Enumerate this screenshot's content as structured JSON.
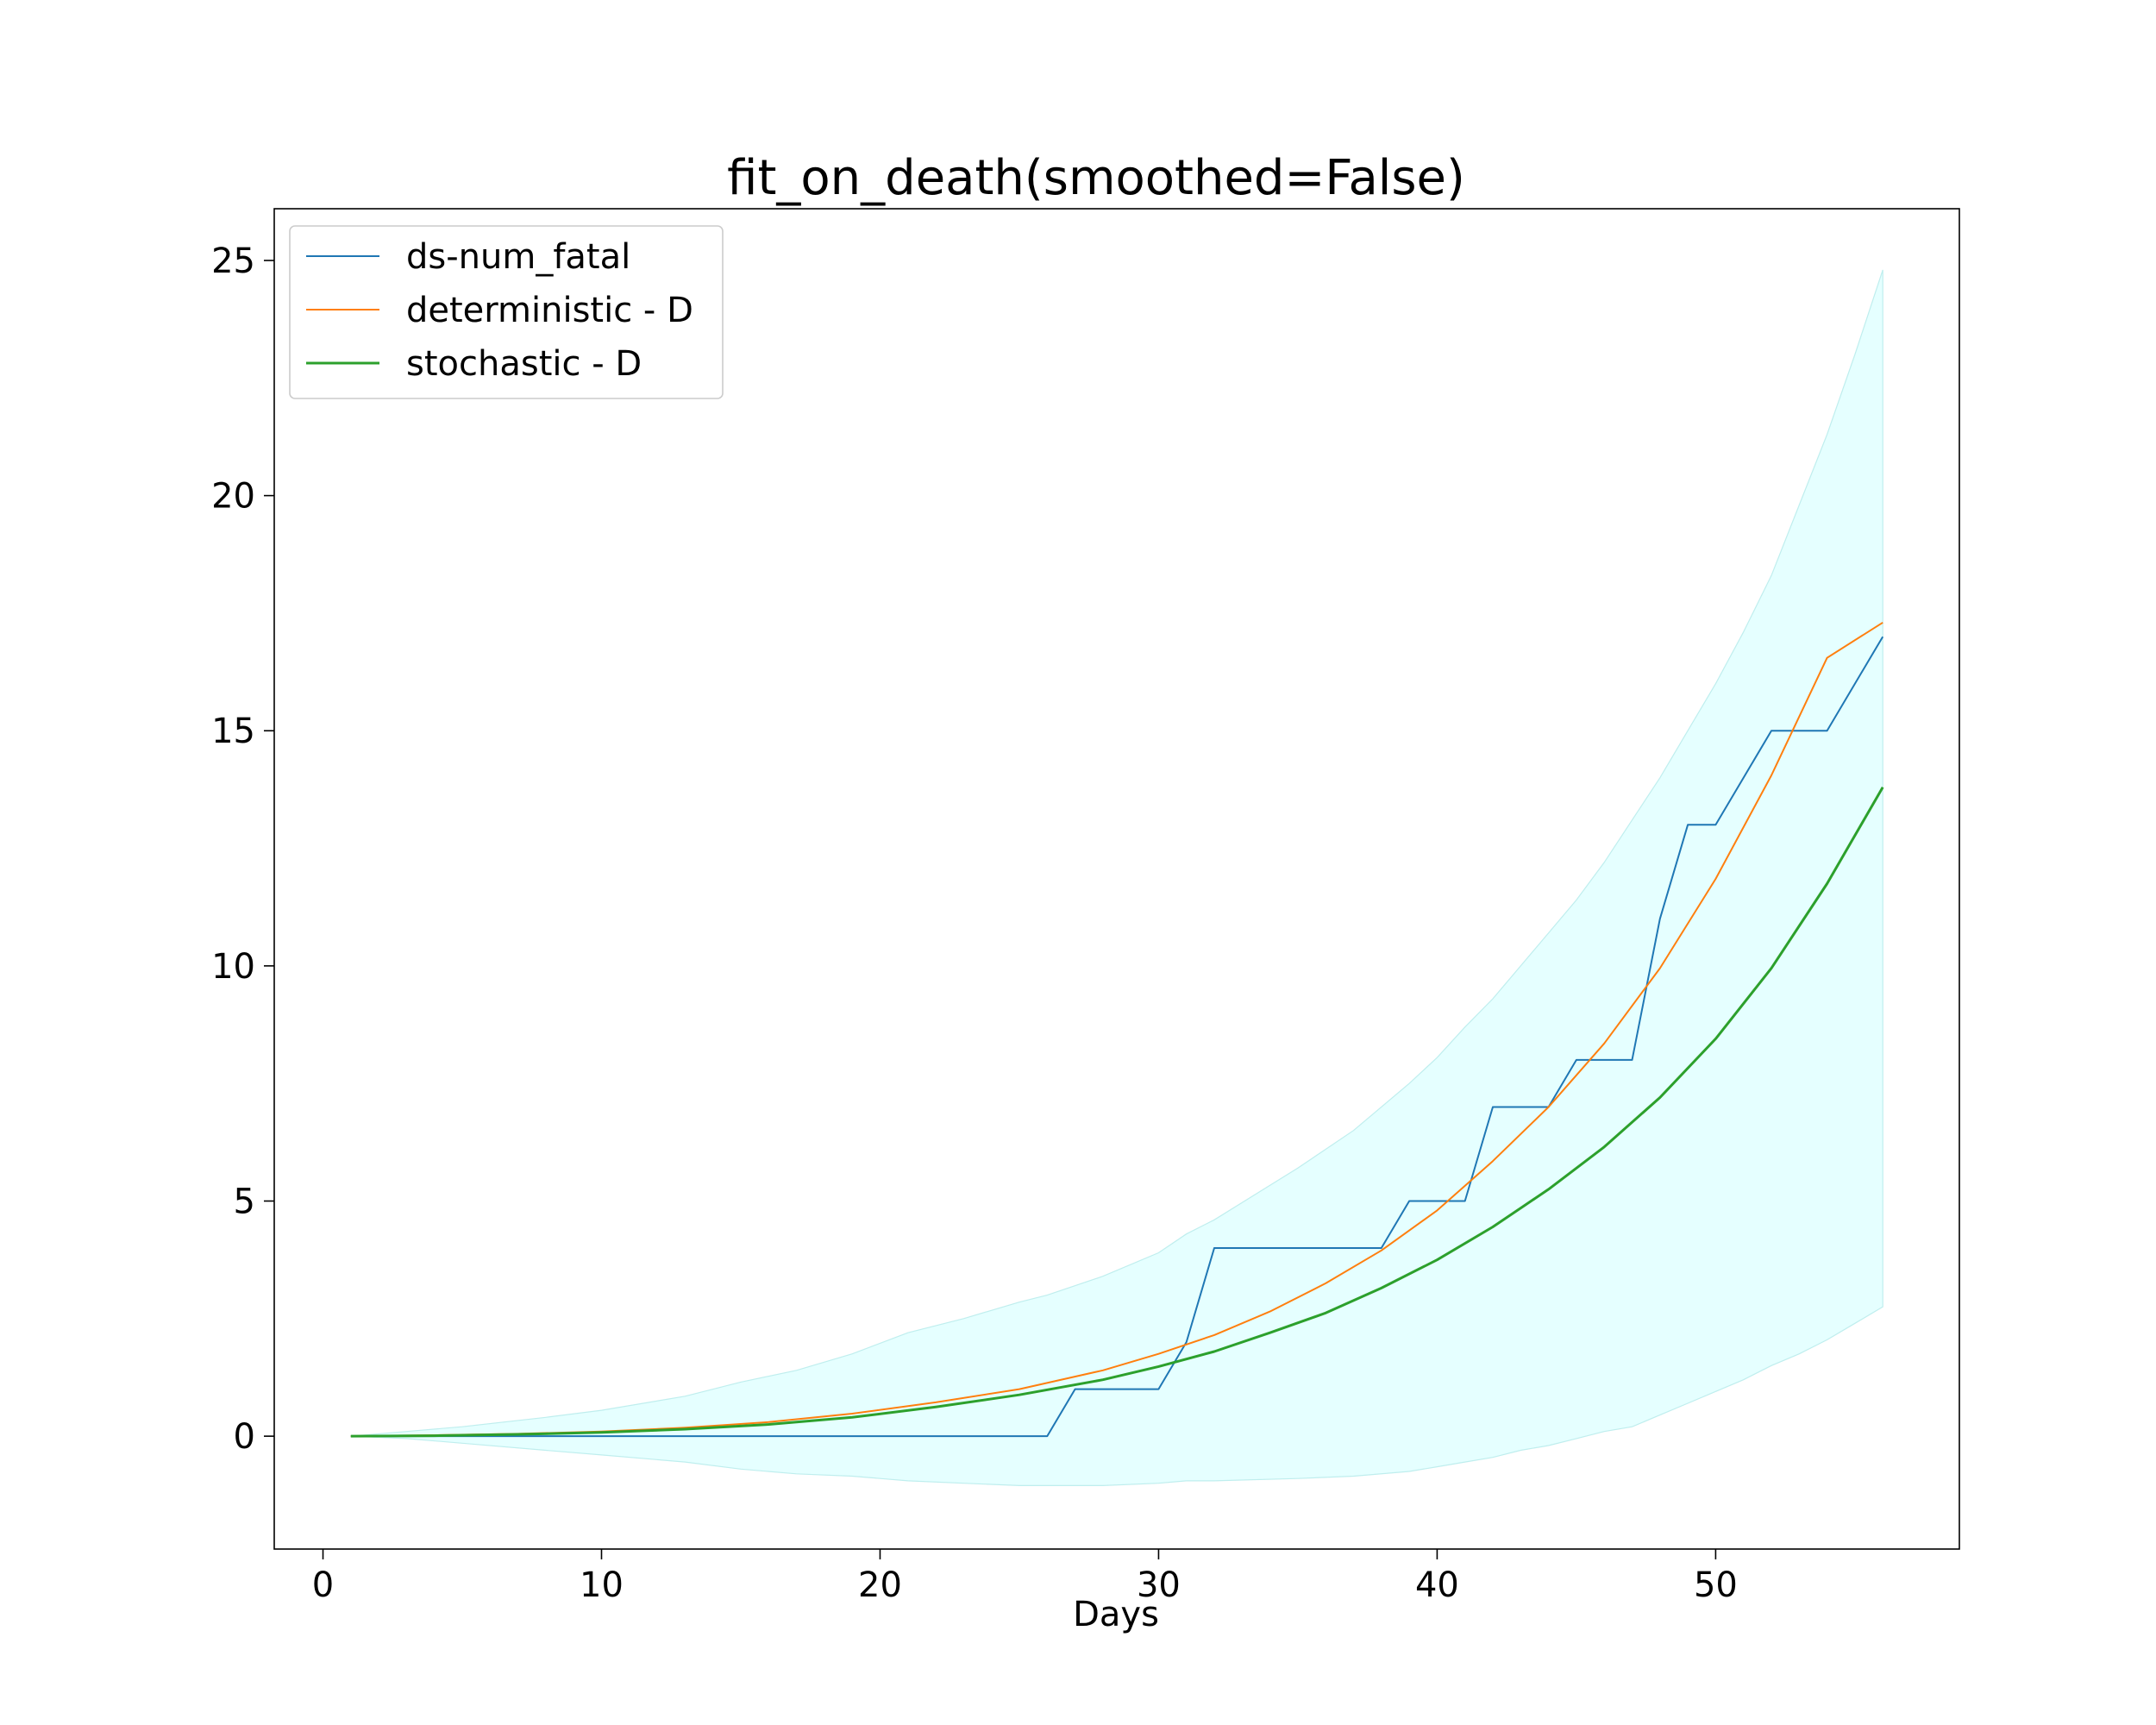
{
  "chart_data": {
    "type": "line",
    "title": "fit_on_death(smoothed=False)",
    "xlabel": "Days",
    "ylabel": "",
    "xlim": [
      -1.75,
      58.75
    ],
    "ylim": [
      -2.4,
      26.1
    ],
    "xticks": [
      0,
      10,
      20,
      30,
      40,
      50
    ],
    "yticks": [
      0,
      5,
      10,
      15,
      20,
      25
    ],
    "x_tick_labels": [
      "0",
      "10",
      "20",
      "30",
      "40",
      "50"
    ],
    "y_tick_labels": [
      "0",
      "5",
      "10",
      "15",
      "20",
      "25"
    ],
    "grid": false,
    "legend_position": "upper-left",
    "series": [
      {
        "name": "ds-num_fatal",
        "color": "#1f77b4",
        "x": [
          1,
          26,
          27,
          30,
          31,
          32,
          38,
          39,
          41,
          42,
          44,
          45,
          47,
          48,
          49,
          50,
          52,
          54,
          56
        ],
        "y": [
          0,
          0,
          1,
          1,
          2,
          4,
          4,
          5,
          5,
          7,
          7,
          8,
          8,
          11,
          13,
          13,
          15,
          15,
          17
        ]
      },
      {
        "name": "deterministic - D",
        "color": "#ff7f0e",
        "x": [
          1,
          4,
          7,
          10,
          13,
          16,
          19,
          22,
          25,
          28,
          30,
          32,
          34,
          36,
          38,
          40,
          42,
          44,
          46,
          48,
          50,
          52,
          54,
          56
        ],
        "y": [
          0,
          0.02,
          0.05,
          0.1,
          0.18,
          0.3,
          0.48,
          0.72,
          1.0,
          1.4,
          1.75,
          2.15,
          2.65,
          3.25,
          3.95,
          4.8,
          5.85,
          7.0,
          8.35,
          9.95,
          11.85,
          14.05,
          16.55,
          17.3
        ]
      },
      {
        "name": "stochastic - D",
        "color": "#2ca02c",
        "x": [
          1,
          4,
          7,
          10,
          13,
          16,
          19,
          22,
          25,
          28,
          30,
          32,
          34,
          36,
          38,
          40,
          42,
          44,
          46,
          48,
          50,
          52,
          54,
          56
        ],
        "y": [
          0,
          0.01,
          0.04,
          0.08,
          0.15,
          0.25,
          0.4,
          0.62,
          0.88,
          1.2,
          1.48,
          1.8,
          2.2,
          2.62,
          3.15,
          3.75,
          4.45,
          5.25,
          6.15,
          7.2,
          8.45,
          9.95,
          11.75,
          13.8
        ]
      }
    ],
    "band": {
      "name": "stochastic interval",
      "color": "#e0ffff",
      "x": [
        1,
        3,
        5,
        8,
        10,
        13,
        15,
        17,
        19,
        21,
        23,
        25,
        26,
        28,
        30,
        31,
        32,
        35,
        37,
        39,
        40,
        41,
        42,
        43,
        44,
        45,
        46,
        47,
        48,
        49,
        50,
        51,
        52,
        53,
        54,
        55,
        56
      ],
      "upper": [
        0,
        0.1,
        0.2,
        0.4,
        0.55,
        0.85,
        1.15,
        1.4,
        1.75,
        2.2,
        2.5,
        2.85,
        3.0,
        3.4,
        3.9,
        4.3,
        4.6,
        5.7,
        6.5,
        7.5,
        8.05,
        8.7,
        9.3,
        10.0,
        10.7,
        11.4,
        12.2,
        13.1,
        14.0,
        15.0,
        16.0,
        17.1,
        18.3,
        19.8,
        21.3,
        23.0,
        24.8
      ],
      "lower": [
        0,
        -0.05,
        -0.15,
        -0.3,
        -0.4,
        -0.55,
        -0.7,
        -0.8,
        -0.85,
        -0.95,
        -1.0,
        -1.05,
        -1.05,
        -1.05,
        -1.0,
        -0.95,
        -0.95,
        -0.9,
        -0.85,
        -0.75,
        -0.65,
        -0.55,
        -0.45,
        -0.3,
        -0.2,
        -0.05,
        0.1,
        0.2,
        0.45,
        0.7,
        0.95,
        1.2,
        1.5,
        1.75,
        2.05,
        2.4,
        2.75
      ]
    }
  }
}
